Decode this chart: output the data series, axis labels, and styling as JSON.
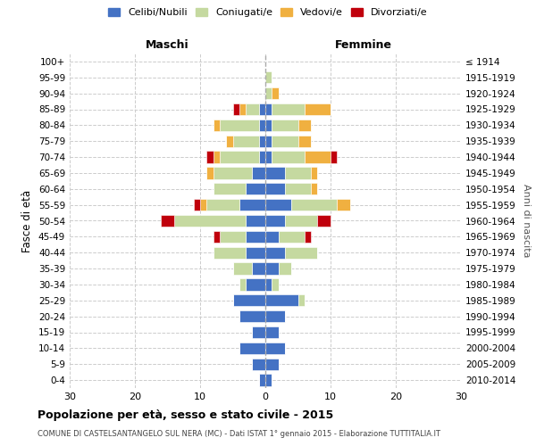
{
  "age_groups": [
    "0-4",
    "5-9",
    "10-14",
    "15-19",
    "20-24",
    "25-29",
    "30-34",
    "35-39",
    "40-44",
    "45-49",
    "50-54",
    "55-59",
    "60-64",
    "65-69",
    "70-74",
    "75-79",
    "80-84",
    "85-89",
    "90-94",
    "95-99",
    "100+"
  ],
  "birth_years": [
    "2010-2014",
    "2005-2009",
    "2000-2004",
    "1995-1999",
    "1990-1994",
    "1985-1989",
    "1980-1984",
    "1975-1979",
    "1970-1974",
    "1965-1969",
    "1960-1964",
    "1955-1959",
    "1950-1954",
    "1945-1949",
    "1940-1944",
    "1935-1939",
    "1930-1934",
    "1925-1929",
    "1920-1924",
    "1915-1919",
    "≤ 1914"
  ],
  "male_celibe": [
    1,
    2,
    4,
    2,
    4,
    5,
    3,
    2,
    3,
    3,
    3,
    4,
    3,
    2,
    1,
    1,
    1,
    1,
    0,
    0,
    0
  ],
  "male_coniugato": [
    0,
    0,
    0,
    0,
    0,
    0,
    1,
    3,
    5,
    4,
    11,
    5,
    5,
    6,
    6,
    4,
    6,
    2,
    0,
    0,
    0
  ],
  "male_vedovo": [
    0,
    0,
    0,
    0,
    0,
    0,
    0,
    0,
    0,
    0,
    0,
    1,
    0,
    1,
    1,
    1,
    1,
    1,
    0,
    0,
    0
  ],
  "male_divorziato": [
    0,
    0,
    0,
    0,
    0,
    0,
    0,
    0,
    0,
    1,
    2,
    1,
    0,
    0,
    1,
    0,
    0,
    1,
    0,
    0,
    0
  ],
  "female_celibe": [
    1,
    2,
    3,
    2,
    3,
    5,
    1,
    2,
    3,
    2,
    3,
    4,
    3,
    3,
    1,
    1,
    1,
    1,
    0,
    0,
    0
  ],
  "female_coniugato": [
    0,
    0,
    0,
    0,
    0,
    1,
    1,
    2,
    5,
    4,
    5,
    7,
    4,
    4,
    5,
    4,
    4,
    5,
    1,
    1,
    0
  ],
  "female_vedovo": [
    0,
    0,
    0,
    0,
    0,
    0,
    0,
    0,
    0,
    0,
    0,
    2,
    1,
    1,
    4,
    2,
    2,
    4,
    1,
    0,
    0
  ],
  "female_divorziato": [
    0,
    0,
    0,
    0,
    0,
    0,
    0,
    0,
    0,
    1,
    2,
    0,
    0,
    0,
    1,
    0,
    0,
    0,
    0,
    0,
    0
  ],
  "color_celibe": "#4472c4",
  "color_coniugato": "#c5d9a0",
  "color_vedovo": "#f0b040",
  "color_divorziato": "#c0000c",
  "xlim": 30,
  "title": "Popolazione per età, sesso e stato civile - 2015",
  "subtitle": "COMUNE DI CASTELSANTANGELO SUL NERA (MC) - Dati ISTAT 1° gennaio 2015 - Elaborazione TUTTITALIA.IT",
  "ylabel": "Fasce di età",
  "ylabel_right": "Anni di nascita",
  "label_maschi": "Maschi",
  "label_femmine": "Femmine",
  "legend_celibe": "Celibi/Nubili",
  "legend_coniugato": "Coniugati/e",
  "legend_vedovo": "Vedovi/e",
  "legend_divorziato": "Divorziati/e"
}
